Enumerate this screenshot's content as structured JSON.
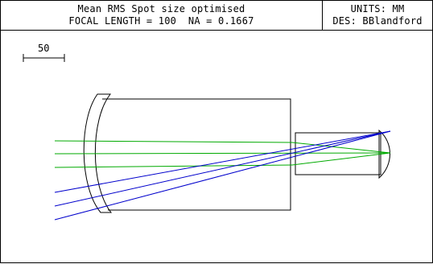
{
  "title_block": {
    "line_1": "Mean RMS Spot size optimised",
    "line_2": "FOCAL LENGTH = 100  NA = 0.1667",
    "units": "UNITS: MM",
    "designer": "DES: BBlandford"
  },
  "scale_bar": {
    "label": "50"
  },
  "colors": {
    "outline": "#000000",
    "on_axis_rays": "#00aa00",
    "off_axis_rays": "#0000cc"
  }
}
